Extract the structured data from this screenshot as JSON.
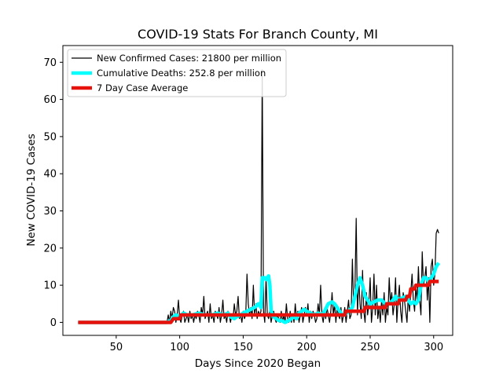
{
  "chart_data": {
    "type": "line",
    "title": "COVID-19 Stats For Branch County, MI",
    "xlabel": "Days Since 2020 Began",
    "ylabel": "New COVID-19 Cases",
    "xlim": [
      8,
      315
    ],
    "ylim": [
      -3.5,
      74.5
    ],
    "xticks": [
      50,
      100,
      150,
      200,
      250,
      300
    ],
    "yticks": [
      0,
      10,
      20,
      30,
      40,
      50,
      60,
      70
    ],
    "grid": false,
    "legend_position": "top-left",
    "series": [
      {
        "name": "New Confirmed Cases: 21800 per million",
        "color": "#000000",
        "width": 1.2,
        "points": [
          [
            20,
            0
          ],
          [
            40,
            0
          ],
          [
            60,
            0
          ],
          [
            80,
            0
          ],
          [
            90,
            0
          ],
          [
            91,
            2
          ],
          [
            92,
            0
          ],
          [
            93,
            3
          ],
          [
            94,
            1
          ],
          [
            95,
            4
          ],
          [
            96,
            3
          ],
          [
            97,
            0
          ],
          [
            98,
            2
          ],
          [
            99,
            6
          ],
          [
            100,
            1
          ],
          [
            101,
            0
          ],
          [
            102,
            2
          ],
          [
            103,
            3
          ],
          [
            104,
            0
          ],
          [
            105,
            1
          ],
          [
            106,
            2
          ],
          [
            107,
            0
          ],
          [
            108,
            3
          ],
          [
            109,
            1
          ],
          [
            110,
            2
          ],
          [
            111,
            0
          ],
          [
            112,
            2
          ],
          [
            113,
            1
          ],
          [
            114,
            3
          ],
          [
            115,
            2
          ],
          [
            116,
            0
          ],
          [
            117,
            4
          ],
          [
            118,
            2
          ],
          [
            119,
            7
          ],
          [
            120,
            1
          ],
          [
            121,
            2
          ],
          [
            122,
            3
          ],
          [
            123,
            0
          ],
          [
            124,
            5
          ],
          [
            125,
            1
          ],
          [
            126,
            2
          ],
          [
            127,
            0
          ],
          [
            128,
            3
          ],
          [
            129,
            2
          ],
          [
            130,
            1
          ],
          [
            131,
            4
          ],
          [
            132,
            0
          ],
          [
            133,
            2
          ],
          [
            134,
            6
          ],
          [
            135,
            1
          ],
          [
            136,
            2
          ],
          [
            137,
            0
          ],
          [
            138,
            3
          ],
          [
            139,
            2
          ],
          [
            140,
            0
          ],
          [
            141,
            2
          ],
          [
            142,
            1
          ],
          [
            143,
            5
          ],
          [
            144,
            2
          ],
          [
            145,
            3
          ],
          [
            146,
            7
          ],
          [
            147,
            1
          ],
          [
            148,
            2
          ],
          [
            149,
            0
          ],
          [
            150,
            3
          ],
          [
            151,
            1
          ],
          [
            152,
            2
          ],
          [
            153,
            13
          ],
          [
            154,
            5
          ],
          [
            155,
            2
          ],
          [
            156,
            4
          ],
          [
            157,
            1
          ],
          [
            158,
            10
          ],
          [
            159,
            2
          ],
          [
            160,
            5
          ],
          [
            161,
            1
          ],
          [
            162,
            3
          ],
          [
            163,
            2
          ],
          [
            164,
            3
          ],
          [
            165,
            68
          ],
          [
            166,
            3
          ],
          [
            167,
            0
          ],
          [
            168,
            12
          ],
          [
            169,
            2
          ],
          [
            170,
            1
          ],
          [
            171,
            3
          ],
          [
            172,
            0
          ],
          [
            173,
            2
          ],
          [
            174,
            3
          ],
          [
            175,
            1
          ],
          [
            176,
            0
          ],
          [
            177,
            2
          ],
          [
            178,
            1
          ],
          [
            179,
            0
          ],
          [
            180,
            3
          ],
          [
            181,
            0
          ],
          [
            182,
            2
          ],
          [
            183,
            0
          ],
          [
            184,
            5
          ],
          [
            185,
            1
          ],
          [
            186,
            0
          ],
          [
            187,
            3
          ],
          [
            188,
            0
          ],
          [
            189,
            2
          ],
          [
            190,
            0
          ],
          [
            191,
            5
          ],
          [
            192,
            1
          ],
          [
            193,
            3
          ],
          [
            194,
            0
          ],
          [
            195,
            2
          ],
          [
            196,
            4
          ],
          [
            197,
            0
          ],
          [
            198,
            2
          ],
          [
            199,
            4
          ],
          [
            200,
            2
          ],
          [
            201,
            5
          ],
          [
            202,
            0
          ],
          [
            203,
            3
          ],
          [
            204,
            1
          ],
          [
            205,
            3
          ],
          [
            206,
            2
          ],
          [
            207,
            0
          ],
          [
            208,
            1
          ],
          [
            209,
            5
          ],
          [
            210,
            2
          ],
          [
            211,
            10
          ],
          [
            212,
            2
          ],
          [
            213,
            0
          ],
          [
            214,
            3
          ],
          [
            215,
            1
          ],
          [
            216,
            4
          ],
          [
            217,
            2
          ],
          [
            218,
            0
          ],
          [
            219,
            3
          ],
          [
            220,
            8
          ],
          [
            221,
            2
          ],
          [
            222,
            5
          ],
          [
            223,
            0
          ],
          [
            224,
            4
          ],
          [
            225,
            2
          ],
          [
            226,
            1
          ],
          [
            227,
            4
          ],
          [
            228,
            0
          ],
          [
            229,
            2
          ],
          [
            230,
            4
          ],
          [
            231,
            0
          ],
          [
            232,
            3
          ],
          [
            233,
            6
          ],
          [
            234,
            1
          ],
          [
            235,
            2
          ],
          [
            236,
            17
          ],
          [
            237,
            4
          ],
          [
            238,
            9
          ],
          [
            239,
            28
          ],
          [
            240,
            2
          ],
          [
            241,
            12
          ],
          [
            242,
            5
          ],
          [
            243,
            1
          ],
          [
            244,
            14
          ],
          [
            245,
            3
          ],
          [
            246,
            0
          ],
          [
            247,
            8
          ],
          [
            248,
            2
          ],
          [
            249,
            5
          ],
          [
            250,
            12
          ],
          [
            251,
            0
          ],
          [
            252,
            4
          ],
          [
            253,
            13
          ],
          [
            254,
            2
          ],
          [
            255,
            10
          ],
          [
            256,
            1
          ],
          [
            257,
            4
          ],
          [
            258,
            0
          ],
          [
            259,
            6
          ],
          [
            260,
            2
          ],
          [
            261,
            8
          ],
          [
            262,
            0
          ],
          [
            263,
            4
          ],
          [
            264,
            2
          ],
          [
            265,
            12
          ],
          [
            266,
            5
          ],
          [
            267,
            8
          ],
          [
            268,
            2
          ],
          [
            269,
            5
          ],
          [
            270,
            12
          ],
          [
            271,
            0
          ],
          [
            272,
            6
          ],
          [
            273,
            10
          ],
          [
            274,
            3
          ],
          [
            275,
            0
          ],
          [
            276,
            8
          ],
          [
            277,
            6
          ],
          [
            278,
            3
          ],
          [
            279,
            0
          ],
          [
            280,
            7
          ],
          [
            281,
            3
          ],
          [
            282,
            8
          ],
          [
            283,
            13
          ],
          [
            284,
            6
          ],
          [
            285,
            3
          ],
          [
            286,
            10
          ],
          [
            287,
            5
          ],
          [
            288,
            15
          ],
          [
            289,
            6
          ],
          [
            290,
            2
          ],
          [
            291,
            19
          ],
          [
            292,
            10
          ],
          [
            293,
            12
          ],
          [
            294,
            15
          ],
          [
            295,
            6
          ],
          [
            296,
            12
          ],
          [
            297,
            0
          ],
          [
            298,
            15
          ],
          [
            299,
            17
          ],
          [
            300,
            10
          ],
          [
            301,
            13
          ],
          [
            302,
            24
          ],
          [
            303,
            25
          ],
          [
            304,
            24
          ]
        ]
      },
      {
        "name": "Cumulative Deaths: 252.8 per million",
        "color": "#00ffff",
        "width": 4.5,
        "points": [
          [
            20,
            0
          ],
          [
            60,
            0
          ],
          [
            90,
            0
          ],
          [
            93,
            0.5
          ],
          [
            95,
            1.5
          ],
          [
            97,
            2
          ],
          [
            100,
            1.5
          ],
          [
            103,
            2.5
          ],
          [
            106,
            2
          ],
          [
            110,
            2
          ],
          [
            115,
            2.5
          ],
          [
            120,
            2
          ],
          [
            125,
            2
          ],
          [
            130,
            2.5
          ],
          [
            135,
            2
          ],
          [
            138,
            2.5
          ],
          [
            140,
            1.5
          ],
          [
            143,
            1
          ],
          [
            145,
            1.5
          ],
          [
            148,
            2
          ],
          [
            150,
            2.5
          ],
          [
            153,
            3
          ],
          [
            156,
            3.5
          ],
          [
            159,
            4
          ],
          [
            162,
            5
          ],
          [
            164,
            4
          ],
          [
            165,
            12
          ],
          [
            167,
            12
          ],
          [
            168,
            11.5
          ],
          [
            170,
            12.5
          ],
          [
            171,
            10
          ],
          [
            172,
            3
          ],
          [
            174,
            1.5
          ],
          [
            176,
            1
          ],
          [
            178,
            0.5
          ],
          [
            180,
            0.5
          ],
          [
            183,
            0
          ],
          [
            186,
            0.5
          ],
          [
            188,
            1
          ],
          [
            190,
            1.5
          ],
          [
            192,
            1
          ],
          [
            194,
            2.5
          ],
          [
            196,
            3
          ],
          [
            198,
            3.5
          ],
          [
            200,
            3
          ],
          [
            203,
            2.5
          ],
          [
            206,
            2
          ],
          [
            209,
            2.5
          ],
          [
            212,
            2
          ],
          [
            214,
            3
          ],
          [
            217,
            5
          ],
          [
            220,
            5.5
          ],
          [
            222,
            5
          ],
          [
            224,
            4
          ],
          [
            226,
            3
          ],
          [
            228,
            2
          ],
          [
            230,
            2
          ],
          [
            233,
            3
          ],
          [
            236,
            4
          ],
          [
            238,
            7
          ],
          [
            240,
            10
          ],
          [
            242,
            12
          ],
          [
            244,
            10
          ],
          [
            246,
            7
          ],
          [
            248,
            6
          ],
          [
            250,
            5
          ],
          [
            253,
            5.5
          ],
          [
            256,
            6
          ],
          [
            259,
            6
          ],
          [
            262,
            5
          ],
          [
            265,
            5
          ],
          [
            268,
            6
          ],
          [
            270,
            7
          ],
          [
            272,
            6
          ],
          [
            275,
            6.5
          ],
          [
            278,
            7
          ],
          [
            280,
            6
          ],
          [
            282,
            5
          ],
          [
            284,
            5.5
          ],
          [
            286,
            5
          ],
          [
            288,
            6
          ],
          [
            290,
            10
          ],
          [
            292,
            12
          ],
          [
            294,
            12
          ],
          [
            296,
            11
          ],
          [
            298,
            12
          ],
          [
            300,
            13
          ],
          [
            302,
            15
          ],
          [
            304,
            16
          ]
        ]
      },
      {
        "name": "7 Day Case Average",
        "color": "#e8120c",
        "width": 4.5,
        "points": [
          [
            20,
            0
          ],
          [
            60,
            0
          ],
          [
            93,
            0
          ],
          [
            95,
            1
          ],
          [
            100,
            1
          ],
          [
            101,
            2
          ],
          [
            140,
            2
          ],
          [
            160,
            2
          ],
          [
            180,
            2
          ],
          [
            200,
            2
          ],
          [
            210,
            2
          ],
          [
            225,
            2
          ],
          [
            230,
            2
          ],
          [
            231,
            3
          ],
          [
            245,
            3
          ],
          [
            246,
            4
          ],
          [
            262,
            4
          ],
          [
            263,
            5
          ],
          [
            272,
            5
          ],
          [
            273,
            6
          ],
          [
            278,
            6
          ],
          [
            279,
            7
          ],
          [
            281,
            7
          ],
          [
            282,
            9
          ],
          [
            285,
            9
          ],
          [
            286,
            10
          ],
          [
            296,
            10
          ],
          [
            297,
            11
          ],
          [
            304,
            11
          ]
        ]
      }
    ]
  }
}
